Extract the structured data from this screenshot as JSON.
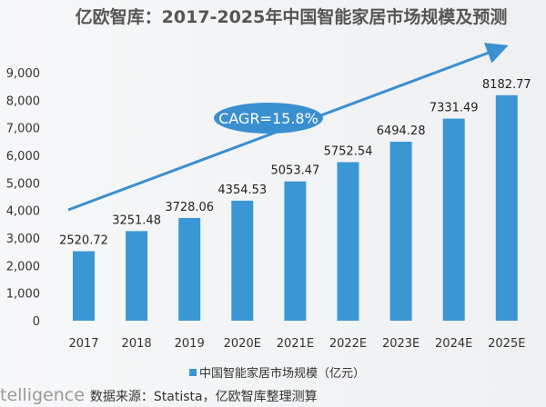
{
  "chart_data": {
    "type": "bar",
    "title": "亿欧智库：2017-2025年中国智能家居市场规模及预测",
    "categories": [
      "2017",
      "2018",
      "2019",
      "2020E",
      "2021E",
      "2022E",
      "2023E",
      "2024E",
      "2025E"
    ],
    "series": [
      {
        "name": "中国智能家居市场规模（亿元）",
        "values": [
          2520.72,
          3251.48,
          3728.06,
          4354.53,
          5053.47,
          5752.54,
          6494.28,
          7331.49,
          8182.77
        ]
      }
    ],
    "data_labels": [
      "2520.72",
      "3251.48",
      "3728.06",
      "4354.53",
      "5053.47",
      "5752.54",
      "6494.28",
      "7331.49",
      "8182.77"
    ],
    "ylim": [
      0,
      9000
    ],
    "yticks": [
      "0",
      "1,000",
      "2,000",
      "3,000",
      "4,000",
      "5,000",
      "6,000",
      "7,000",
      "8,000",
      "9,000"
    ],
    "grid": false,
    "legend_position": "bottom",
    "annotation": "CAGR=15.8%",
    "bar_color": "#3a97d4",
    "annotation_color": "#3a8fd0"
  },
  "footer": {
    "brand_fragment": "telligence",
    "source": "数据来源：Statista，亿欧智库整理测算"
  }
}
